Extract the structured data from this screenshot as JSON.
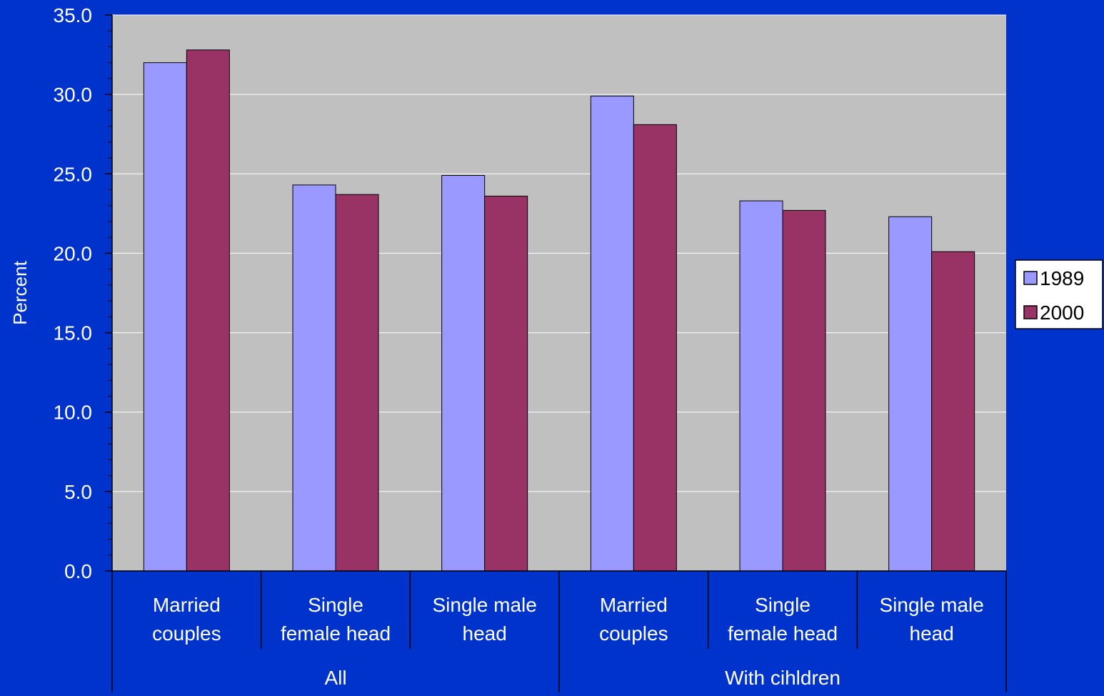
{
  "colors": {
    "background": "#0033cc",
    "plot_area": "#c0c0c0",
    "gridline": "#ffffff",
    "axis": "#000000",
    "text": "#ffffff",
    "legend_bg": "#ffffff",
    "legend_text": "#000000"
  },
  "chart_data": {
    "type": "bar",
    "title": "",
    "ylabel": "Percent",
    "xlabel": "",
    "ylim": [
      0,
      35
    ],
    "ytick_step": 5,
    "ytick_labels": [
      "0.0",
      "5.0",
      "10.0",
      "15.0",
      "20.0",
      "25.0",
      "30.0",
      "35.0"
    ],
    "grid": true,
    "categories": [
      [
        "Married",
        "couples"
      ],
      [
        "Single",
        "female head"
      ],
      [
        "Single male",
        "head"
      ],
      [
        "Married",
        "couples"
      ],
      [
        "Single",
        "female head"
      ],
      [
        "Single male",
        "head"
      ]
    ],
    "groups": [
      {
        "label": "All",
        "span": 3
      },
      {
        "label": "With cihldren",
        "span": 3
      }
    ],
    "series": [
      {
        "name": "1989",
        "color": "#9999ff",
        "values": [
          32.0,
          24.3,
          24.9,
          29.9,
          23.3,
          22.3
        ]
      },
      {
        "name": "2000",
        "color": "#993366",
        "values": [
          32.8,
          23.7,
          23.6,
          28.1,
          22.7,
          20.1
        ]
      }
    ],
    "legend_position": "right"
  }
}
